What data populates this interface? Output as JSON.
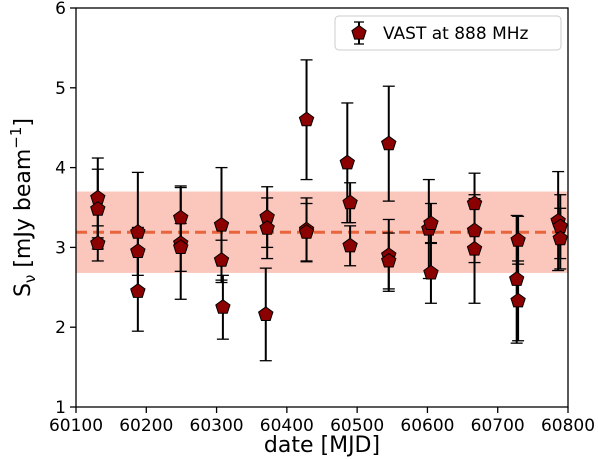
{
  "chart_data": {
    "type": "scatter",
    "xlabel": "date [MJD]",
    "ylabel_main": "S",
    "ylabel_sub": "ν",
    "ylabel_rest": " [mJy beam",
    "ylabel_sup": "−1",
    "ylabel_end": "]",
    "xlim": [
      60100,
      60800
    ],
    "ylim": [
      1,
      6
    ],
    "xticks": [
      60100,
      60200,
      60300,
      60400,
      60500,
      60600,
      60700,
      60800
    ],
    "yticks": [
      1,
      2,
      3,
      4,
      5,
      6
    ],
    "grid": false,
    "legend_position": "top-right",
    "mean_line": {
      "value": 3.19,
      "color": "#e8643c",
      "style": "dashed"
    },
    "band": {
      "lower": 2.68,
      "upper": 3.7,
      "color": "#fbc7bd"
    },
    "series": [
      {
        "name": "VAST at 888 MHz",
        "marker": "pentagon",
        "color": "#8b0000",
        "points": [
          {
            "x": 60131,
            "y": 3.62,
            "err": 0.5
          },
          {
            "x": 60131,
            "y": 3.48,
            "err": 0.5
          },
          {
            "x": 60131,
            "y": 3.05,
            "err": 0.22
          },
          {
            "x": 60188,
            "y": 3.19,
            "err": 0.75
          },
          {
            "x": 60188,
            "y": 2.95,
            "err": 0.3
          },
          {
            "x": 60188,
            "y": 2.45,
            "err": 0.5
          },
          {
            "x": 60249,
            "y": 3.37,
            "err": 0.4
          },
          {
            "x": 60249,
            "y": 3.05,
            "err": 0.7
          },
          {
            "x": 60249,
            "y": 3.0,
            "err": 0.3
          },
          {
            "x": 60307,
            "y": 3.28,
            "err": 0.72
          },
          {
            "x": 60307,
            "y": 2.84,
            "err": 0.25
          },
          {
            "x": 60309,
            "y": 2.25,
            "err": 0.4
          },
          {
            "x": 60372,
            "y": 3.38,
            "err": 0.38
          },
          {
            "x": 60372,
            "y": 3.24,
            "err": 0.38
          },
          {
            "x": 60370,
            "y": 2.16,
            "err": 0.58
          },
          {
            "x": 60428,
            "y": 4.6,
            "err": 0.75
          },
          {
            "x": 60428,
            "y": 3.22,
            "err": 0.4
          },
          {
            "x": 60428,
            "y": 3.19,
            "err": 0.36
          },
          {
            "x": 60486,
            "y": 4.06,
            "err": 0.75
          },
          {
            "x": 60490,
            "y": 3.56,
            "err": 0.25
          },
          {
            "x": 60490,
            "y": 3.02,
            "err": 0.25
          },
          {
            "x": 60545,
            "y": 4.3,
            "err": 0.72
          },
          {
            "x": 60545,
            "y": 2.9,
            "err": 0.45
          },
          {
            "x": 60545,
            "y": 2.83,
            "err": 0.35
          },
          {
            "x": 60602,
            "y": 3.23,
            "err": 0.62
          },
          {
            "x": 60605,
            "y": 3.3,
            "err": 0.25
          },
          {
            "x": 60605,
            "y": 2.68,
            "err": 0.38
          },
          {
            "x": 60667,
            "y": 3.55,
            "err": 0.38
          },
          {
            "x": 60667,
            "y": 3.21,
            "err": 0.4
          },
          {
            "x": 60667,
            "y": 2.98,
            "err": 0.68
          },
          {
            "x": 60729,
            "y": 3.09,
            "err": 0.3
          },
          {
            "x": 60727,
            "y": 2.6,
            "err": 0.8
          },
          {
            "x": 60729,
            "y": 2.33,
            "err": 0.5
          },
          {
            "x": 60786,
            "y": 3.33,
            "err": 0.62
          },
          {
            "x": 60789,
            "y": 3.26,
            "err": 0.4
          },
          {
            "x": 60789,
            "y": 3.11,
            "err": 0.38
          }
        ]
      }
    ]
  }
}
